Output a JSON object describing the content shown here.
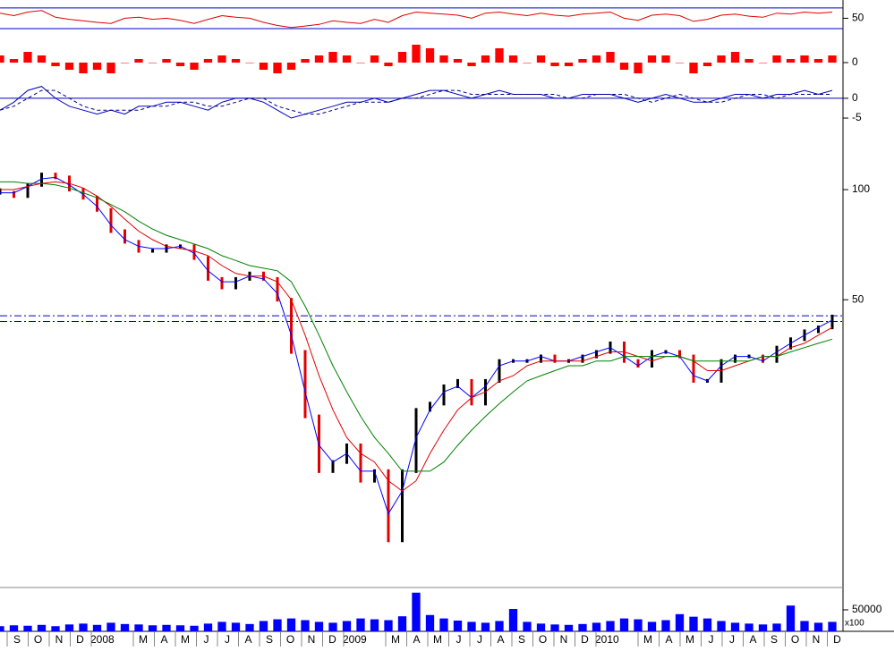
{
  "chart_data": [
    {
      "type": "line",
      "ylim": [
        16,
        82
      ],
      "yticks": [
        50
      ],
      "levels": [
        30,
        70
      ],
      "level_color": "#0000c0",
      "series": [
        {
          "color": "#e00000",
          "values": [
            60,
            55,
            62,
            65,
            52,
            48,
            45,
            42,
            40,
            50,
            52,
            48,
            50,
            46,
            40,
            48,
            55,
            52,
            50,
            42,
            36,
            32,
            35,
            38,
            45,
            42,
            40,
            48,
            42,
            55,
            62,
            60,
            58,
            56,
            50,
            60,
            62,
            58,
            55,
            60,
            56,
            54,
            58,
            60,
            62,
            50,
            46,
            56,
            58,
            55,
            44,
            48,
            56,
            58,
            54,
            52,
            60,
            58,
            62,
            60,
            62
          ]
        }
      ]
    },
    {
      "type": "bar",
      "ylim": [
        -4.5,
        7
      ],
      "yticks": [
        0
      ],
      "color": "#ff0000",
      "values": [
        2,
        1,
        3,
        2,
        -1,
        -2,
        -3,
        -2,
        -3,
        0,
        1,
        0,
        1,
        -1,
        -2,
        1,
        2,
        1,
        0,
        -2,
        -3,
        -2,
        1,
        2,
        3,
        2,
        0,
        2,
        -1,
        3,
        5,
        4,
        2,
        1,
        -1,
        2,
        4,
        2,
        0,
        2,
        -1,
        -1,
        1,
        2,
        3,
        -2,
        -3,
        2,
        2,
        0,
        -3,
        -1,
        2,
        3,
        1,
        0,
        2,
        1,
        2,
        1,
        2
      ]
    },
    {
      "type": "line",
      "ylim": [
        -6.8,
        4.5
      ],
      "yticks": [
        0,
        -5
      ],
      "levels": [
        0
      ],
      "level_color": "#0000c0",
      "series": [
        {
          "color": "#0000c0",
          "values": [
            -3,
            -1,
            2,
            3,
            0,
            -2,
            -3,
            -4,
            -3,
            -4,
            -2,
            -2,
            -1,
            -1,
            -2,
            -3,
            -1,
            0,
            0,
            -1,
            -3,
            -5,
            -4,
            -3,
            -2,
            -1,
            -1,
            0,
            -1,
            0,
            1,
            2,
            2,
            1,
            0,
            1,
            2,
            1,
            1,
            1,
            0,
            0,
            1,
            1,
            1,
            0,
            -1,
            0,
            1,
            0,
            -1,
            -1,
            0,
            1,
            1,
            0,
            1,
            1,
            2,
            1,
            2
          ]
        },
        {
          "color": "#000080",
          "dashed": true,
          "values": [
            -3,
            -2,
            0,
            2,
            2,
            0,
            -2,
            -3,
            -3,
            -3,
            -3,
            -2,
            -2,
            -1,
            -1,
            -2,
            -2,
            -1,
            0,
            0,
            -2,
            -3,
            -4,
            -4,
            -3,
            -2,
            -1,
            -1,
            -1,
            0,
            0,
            1,
            2,
            2,
            1,
            1,
            1,
            1,
            1,
            1,
            1,
            0,
            0,
            1,
            1,
            1,
            0,
            -1,
            0,
            1,
            0,
            -1,
            -1,
            0,
            1,
            1,
            0,
            1,
            1,
            1,
            1
          ]
        }
      ]
    },
    {
      "type": "line",
      "log_scale": true,
      "ylim": [
        8.5,
        150
      ],
      "yticks": [
        50,
        100
      ],
      "levels": [
        45.2,
        43.6
      ],
      "levels_dashed": true,
      "level_color": "#0000c0",
      "series": [
        {
          "color": "#000000",
          "down_color": "#e00000",
          "style": "candle",
          "values": [
            98,
            96,
            103,
            110,
            108,
            100,
            95,
            88,
            77,
            72,
            68,
            68,
            70,
            70,
            65,
            57,
            54,
            57,
            59,
            57,
            50,
            36,
            24,
            17,
            18,
            20,
            16,
            17,
            11,
            17,
            25,
            26,
            29,
            30,
            26,
            30,
            34,
            34,
            34,
            35,
            34,
            34,
            35,
            36,
            38,
            34,
            33,
            36,
            36,
            35,
            30,
            30,
            34,
            35,
            35,
            34,
            37,
            39,
            41,
            42,
            45
          ]
        },
        {
          "color": "#0000ff",
          "values": [
            98,
            98,
            102,
            107,
            108,
            103,
            97,
            90,
            80,
            73,
            70,
            69,
            69,
            70,
            67,
            60,
            56,
            56,
            58,
            57,
            52,
            40,
            28,
            20,
            18,
            19,
            17,
            17,
            13,
            15,
            21,
            25,
            28,
            29,
            27,
            29,
            33,
            34,
            34,
            35,
            34,
            34,
            35,
            36,
            37,
            35,
            33,
            35,
            36,
            35,
            31,
            30,
            33,
            35,
            35,
            34,
            36,
            38,
            40,
            42,
            44
          ]
        },
        {
          "color": "#e00000",
          "values": [
            100,
            100,
            102,
            104,
            105,
            104,
            101,
            96,
            90,
            83,
            77,
            73,
            70,
            69,
            68,
            66,
            62,
            59,
            58,
            58,
            56,
            50,
            40,
            31,
            25,
            21,
            19,
            18,
            16,
            15,
            16,
            19,
            22,
            25,
            27,
            28,
            30,
            31,
            33,
            34,
            34,
            34,
            34,
            35,
            36,
            36,
            35,
            34,
            35,
            35,
            34,
            32,
            32,
            33,
            34,
            35,
            35,
            37,
            38,
            40,
            42
          ]
        },
        {
          "color": "#008000",
          "values": [
            105,
            105,
            104,
            104,
            103,
            101,
            98,
            95,
            91,
            87,
            82,
            78,
            75,
            73,
            71,
            69,
            66,
            64,
            62,
            61,
            60,
            56,
            48,
            40,
            33,
            28,
            24,
            21,
            19,
            17,
            17,
            17,
            18,
            20,
            22,
            24,
            26,
            28,
            30,
            31,
            32,
            33,
            33,
            34,
            34,
            35,
            35,
            35,
            35,
            35,
            34,
            34,
            34,
            34,
            34,
            35,
            35,
            36,
            37,
            38,
            39
          ]
        }
      ]
    },
    {
      "type": "bar",
      "ylim": [
        0,
        102000
      ],
      "yticks": [
        50000
      ],
      "unit_label": "x100",
      "color": "#0000ff",
      "values": [
        12000,
        14000,
        13000,
        15000,
        12000,
        16000,
        18000,
        15000,
        20000,
        17000,
        16000,
        14000,
        15000,
        14000,
        13000,
        18000,
        22000,
        20000,
        17000,
        24000,
        28000,
        30000,
        26000,
        22000,
        20000,
        24000,
        30000,
        28000,
        26000,
        35000,
        90000,
        38000,
        30000,
        25000,
        22000,
        20000,
        24000,
        52000,
        22000,
        18000,
        16000,
        15000,
        17000,
        20000,
        24000,
        30000,
        28000,
        22000,
        26000,
        40000,
        34000,
        30000,
        24000,
        20000,
        18000,
        16000,
        18000,
        60000,
        24000,
        20000,
        22000
      ]
    }
  ],
  "x_axis": {
    "categories": [
      "S",
      "O",
      "N",
      "D",
      "2008",
      "M",
      "A",
      "M",
      "J",
      "J",
      "A",
      "S",
      "O",
      "N",
      "D",
      "2009",
      "M",
      "A",
      "M",
      "J",
      "J",
      "A",
      "S",
      "O",
      "N",
      "D",
      "2010",
      "M",
      "A",
      "M",
      "J",
      "J",
      "A",
      "S",
      "O",
      "N",
      "D"
    ]
  }
}
